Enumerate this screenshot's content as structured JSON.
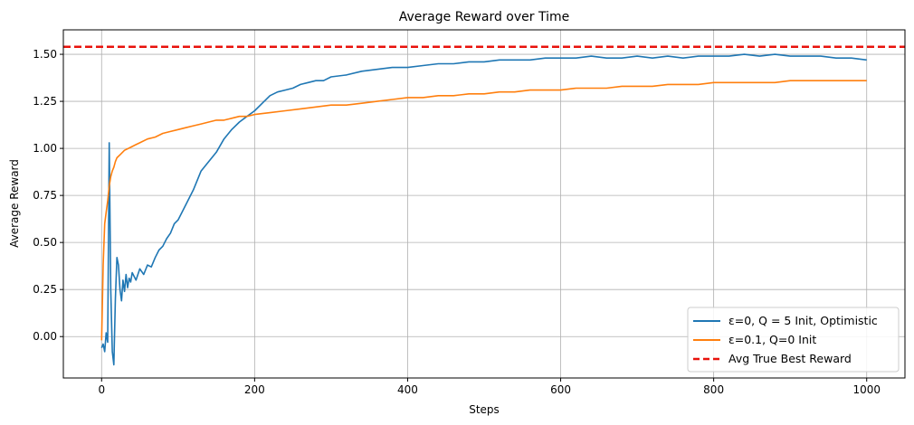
{
  "chart_data": {
    "type": "line",
    "title": "Average Reward over Time",
    "xlabel": "Steps",
    "ylabel": "Average Reward",
    "xlim": [
      -50,
      1050
    ],
    "ylim": [
      -0.22,
      1.63
    ],
    "xticks": [
      0,
      200,
      400,
      600,
      800,
      1000
    ],
    "xtick_labels": [
      "0",
      "200",
      "400",
      "600",
      "800",
      "1000"
    ],
    "yticks": [
      0.0,
      0.25,
      0.5,
      0.75,
      1.0,
      1.25,
      1.5
    ],
    "ytick_labels": [
      "0.00",
      "0.25",
      "0.50",
      "0.75",
      "1.00",
      "1.25",
      "1.50"
    ],
    "grid": true,
    "legend_position": "bottom-right",
    "series": [
      {
        "name": "ε=0, Q = 5 Init, Optimistic",
        "color": "#1f77b4",
        "x": [
          0,
          2,
          4,
          6,
          8,
          10,
          12,
          14,
          16,
          18,
          20,
          22,
          24,
          26,
          28,
          30,
          32,
          34,
          36,
          38,
          40,
          45,
          50,
          55,
          60,
          65,
          70,
          75,
          80,
          85,
          90,
          95,
          100,
          110,
          120,
          130,
          140,
          150,
          160,
          170,
          180,
          190,
          200,
          210,
          220,
          230,
          240,
          250,
          260,
          270,
          280,
          290,
          300,
          320,
          340,
          360,
          380,
          400,
          420,
          440,
          460,
          480,
          500,
          520,
          540,
          560,
          580,
          600,
          620,
          640,
          660,
          680,
          700,
          720,
          740,
          760,
          780,
          800,
          820,
          840,
          860,
          880,
          900,
          920,
          940,
          960,
          980,
          1000
        ],
        "y": [
          -0.06,
          -0.04,
          -0.08,
          0.02,
          -0.03,
          1.03,
          0.25,
          -0.08,
          -0.15,
          0.2,
          0.42,
          0.38,
          0.25,
          0.19,
          0.3,
          0.24,
          0.33,
          0.26,
          0.31,
          0.29,
          0.34,
          0.3,
          0.36,
          0.33,
          0.38,
          0.37,
          0.42,
          0.46,
          0.48,
          0.52,
          0.55,
          0.6,
          0.62,
          0.7,
          0.78,
          0.88,
          0.93,
          0.98,
          1.05,
          1.1,
          1.14,
          1.17,
          1.2,
          1.24,
          1.28,
          1.3,
          1.31,
          1.32,
          1.34,
          1.35,
          1.36,
          1.36,
          1.38,
          1.39,
          1.41,
          1.42,
          1.43,
          1.43,
          1.44,
          1.45,
          1.45,
          1.46,
          1.46,
          1.47,
          1.47,
          1.47,
          1.48,
          1.48,
          1.48,
          1.49,
          1.48,
          1.48,
          1.49,
          1.48,
          1.49,
          1.48,
          1.49,
          1.49,
          1.49,
          1.5,
          1.49,
          1.5,
          1.49,
          1.49,
          1.49,
          1.48,
          1.48,
          1.47
        ]
      },
      {
        "name": "ε=0.1, Q=0 Init",
        "color": "#ff7f0e",
        "x": [
          0,
          2,
          4,
          6,
          8,
          10,
          12,
          14,
          16,
          18,
          20,
          25,
          30,
          35,
          40,
          45,
          50,
          60,
          70,
          80,
          90,
          100,
          110,
          120,
          130,
          140,
          150,
          160,
          170,
          180,
          190,
          200,
          220,
          240,
          260,
          280,
          300,
          320,
          340,
          360,
          380,
          400,
          420,
          440,
          460,
          480,
          500,
          520,
          540,
          560,
          580,
          600,
          620,
          640,
          660,
          680,
          700,
          720,
          740,
          760,
          780,
          800,
          820,
          840,
          860,
          880,
          900,
          920,
          940,
          960,
          980,
          1000
        ],
        "y": [
          -0.02,
          0.38,
          0.6,
          0.66,
          0.72,
          0.8,
          0.85,
          0.88,
          0.9,
          0.93,
          0.95,
          0.97,
          0.99,
          1.0,
          1.01,
          1.02,
          1.03,
          1.05,
          1.06,
          1.08,
          1.09,
          1.1,
          1.11,
          1.12,
          1.13,
          1.14,
          1.15,
          1.15,
          1.16,
          1.17,
          1.17,
          1.18,
          1.19,
          1.2,
          1.21,
          1.22,
          1.23,
          1.23,
          1.24,
          1.25,
          1.26,
          1.27,
          1.27,
          1.28,
          1.28,
          1.29,
          1.29,
          1.3,
          1.3,
          1.31,
          1.31,
          1.31,
          1.32,
          1.32,
          1.32,
          1.33,
          1.33,
          1.33,
          1.34,
          1.34,
          1.34,
          1.35,
          1.35,
          1.35,
          1.35,
          1.35,
          1.36,
          1.36,
          1.36,
          1.36,
          1.36,
          1.36
        ]
      }
    ],
    "reference_line": {
      "name": "Avg True Best Reward",
      "y": 1.54,
      "color": "#e8120c",
      "style": "dashed"
    }
  }
}
